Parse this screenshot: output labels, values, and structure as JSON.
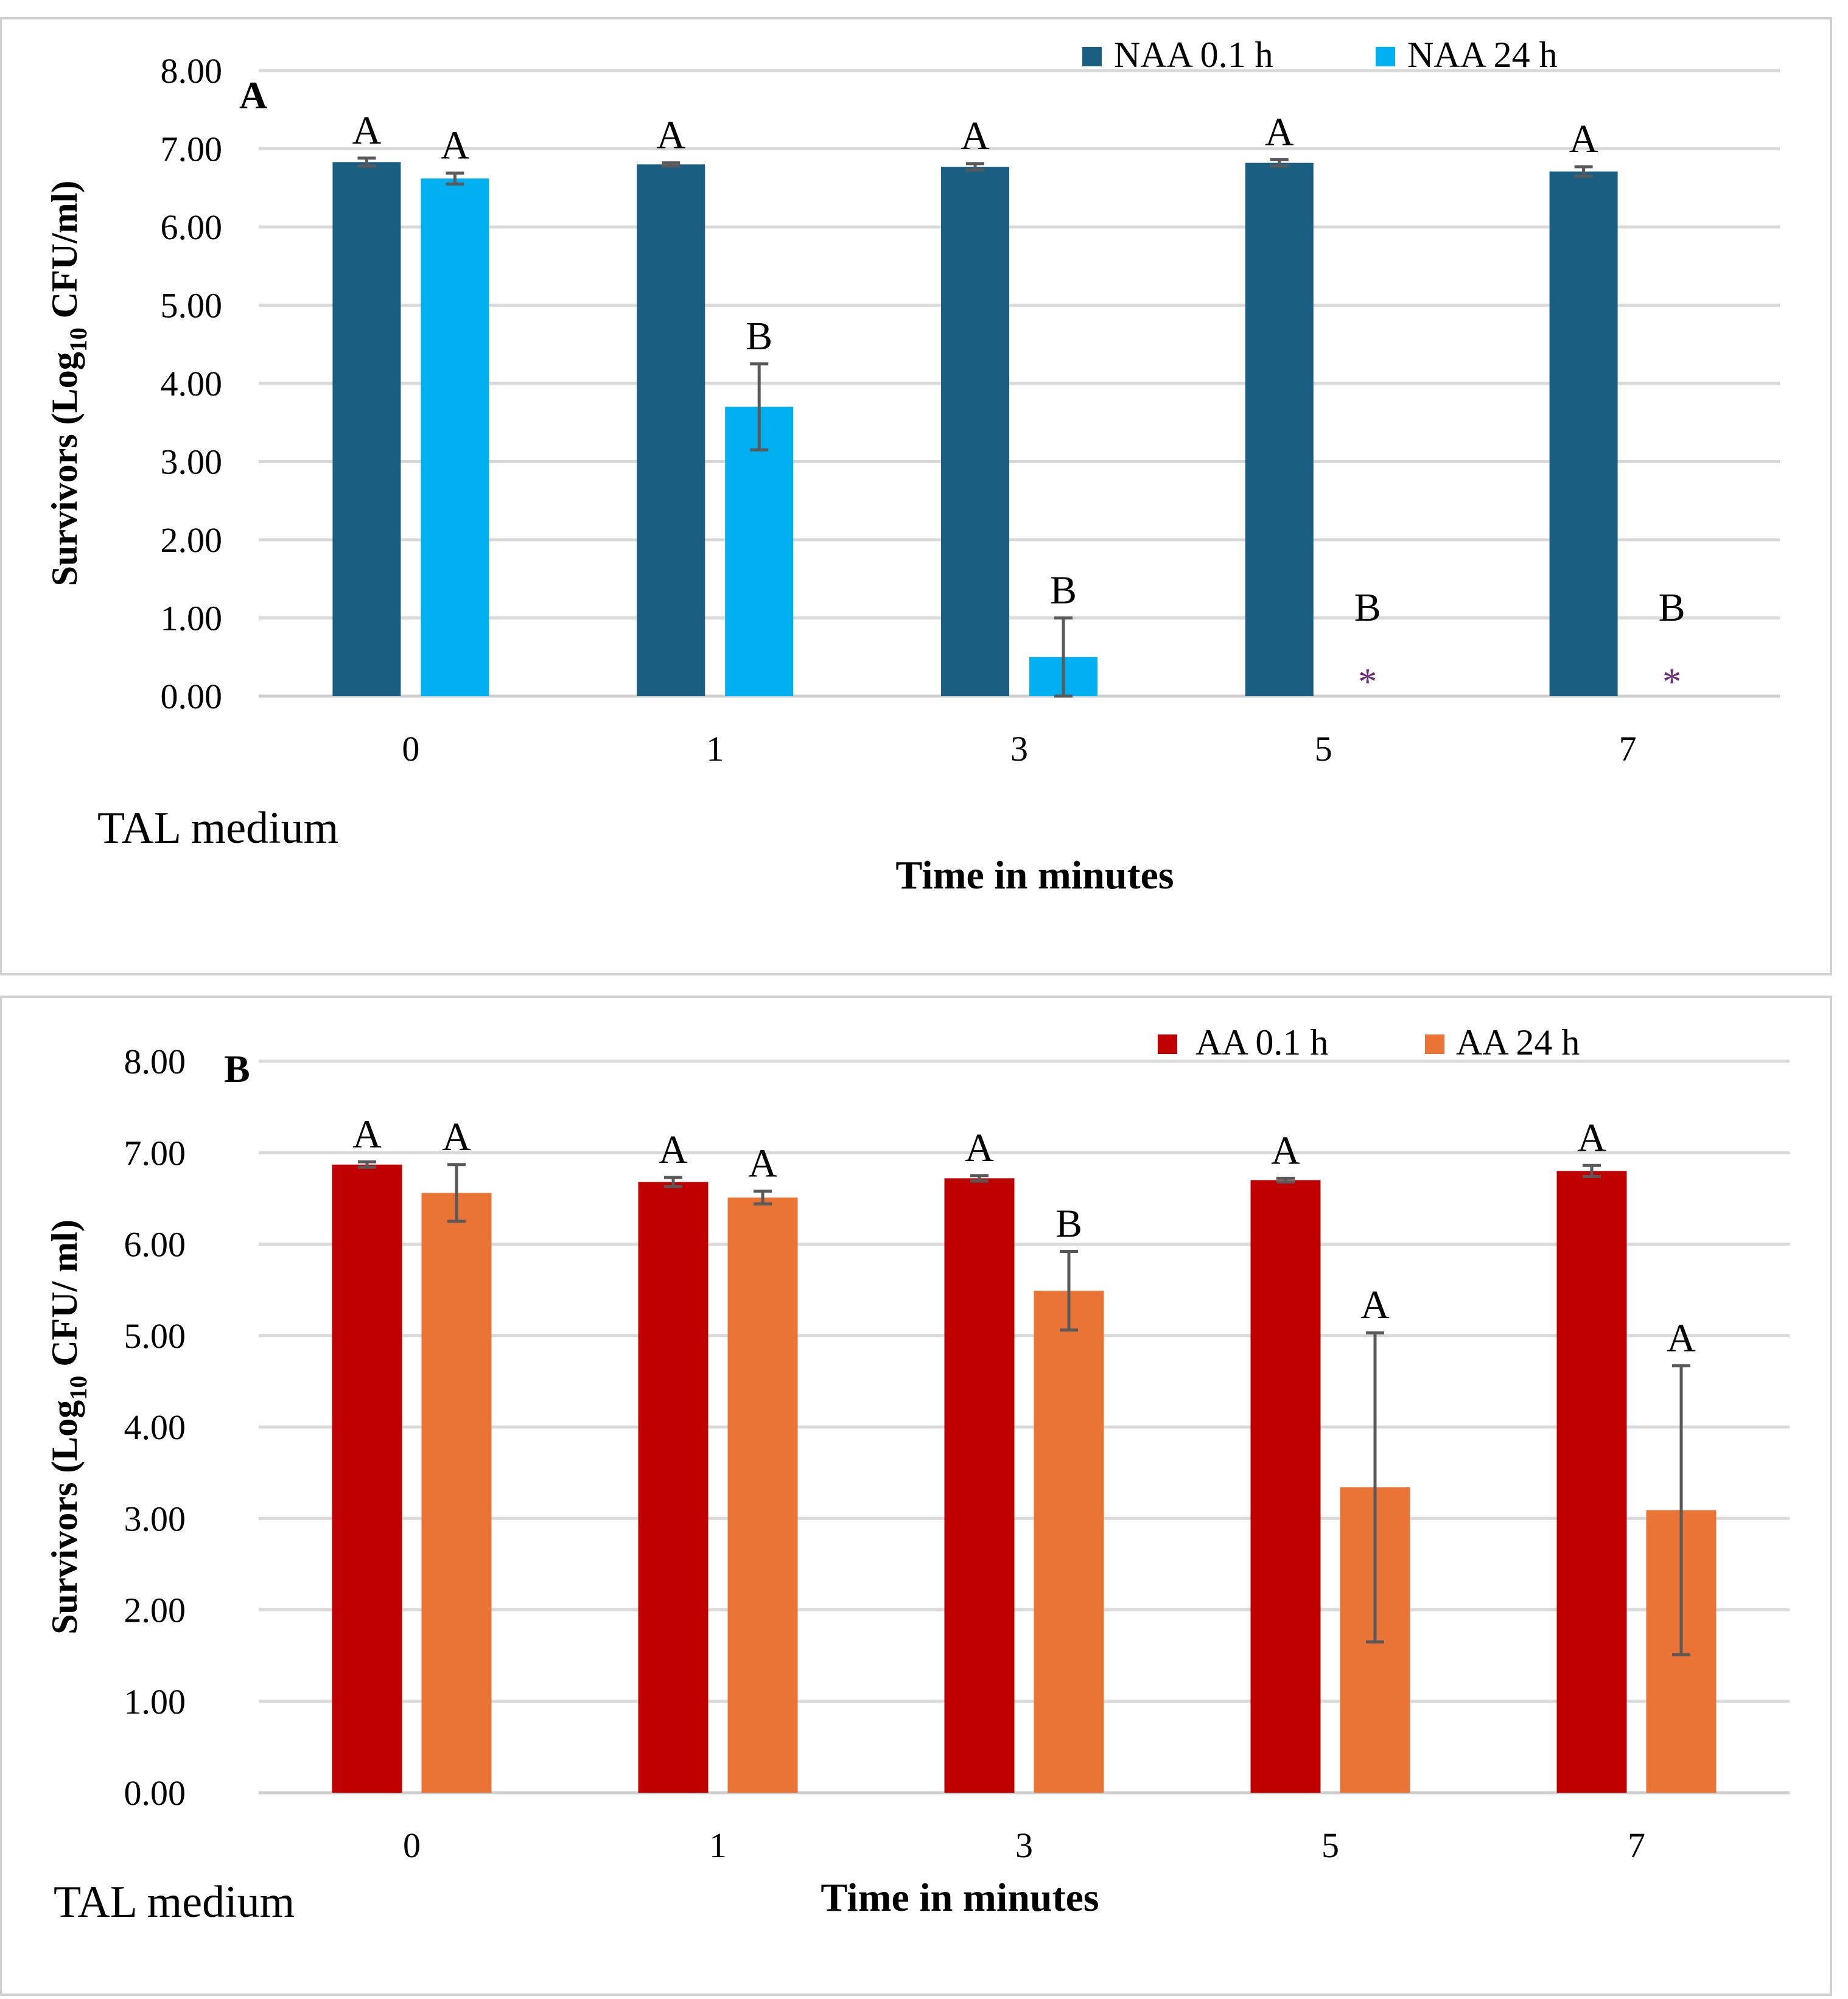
{
  "chart_data": [
    {
      "type": "bar",
      "panel_label": "A",
      "categories": [
        "0",
        "1",
        "3",
        "5",
        "7"
      ],
      "xlabel": "Time in minutes",
      "ylabel_parts": [
        "Survivors (Log",
        "10",
        " CFU/ml)"
      ],
      "note": "TAL medium",
      "ylim": [
        0,
        8
      ],
      "yticks": [
        "0.00",
        "1.00",
        "2.00",
        "3.00",
        "4.00",
        "5.00",
        "6.00",
        "7.00",
        "8.00"
      ],
      "grid": true,
      "legend_position": "top-right",
      "series": [
        {
          "name": "NAA 0.1 h",
          "color": "#1a5e82",
          "values": [
            6.83,
            6.8,
            6.77,
            6.82,
            6.71
          ],
          "errors": [
            0.05,
            0.02,
            0.04,
            0.04,
            0.06
          ],
          "letters": [
            "A",
            "A",
            "A",
            "A",
            "A"
          ],
          "markers": [
            "",
            "",
            "",
            "",
            ""
          ]
        },
        {
          "name": "NAA 24 h",
          "color": "#00b0f0",
          "values": [
            6.62,
            3.7,
            0.5,
            0,
            0
          ],
          "errors": [
            0.07,
            0.55,
            0.5,
            0,
            0
          ],
          "letters": [
            "A",
            "B",
            "B",
            "B",
            "B"
          ],
          "markers": [
            "",
            "",
            "",
            "*",
            "*"
          ]
        }
      ],
      "marker_color": "#6b2c7c"
    },
    {
      "type": "bar",
      "panel_label": "B",
      "categories": [
        "0",
        "1",
        "3",
        "5",
        "7"
      ],
      "xlabel": "Time in minutes",
      "ylabel_parts": [
        "Survivors (Log",
        "10",
        " CFU/ ml)"
      ],
      "note": "TAL medium",
      "ylim": [
        0,
        8
      ],
      "yticks": [
        "0.00",
        "1.00",
        "2.00",
        "3.00",
        "4.00",
        "5.00",
        "6.00",
        "7.00",
        "8.00"
      ],
      "grid": true,
      "legend_position": "top-right",
      "series": [
        {
          "name": "AA 0.1 h",
          "color": "#c00000",
          "values": [
            6.87,
            6.68,
            6.72,
            6.7,
            6.8
          ],
          "errors": [
            0.03,
            0.05,
            0.03,
            0.02,
            0.06
          ],
          "letters": [
            "A",
            "A",
            "A",
            "A",
            "A"
          ],
          "markers": [
            "",
            "",
            "",
            "",
            ""
          ]
        },
        {
          "name": "AA 24 h",
          "color": "#ea7336",
          "values": [
            6.56,
            6.51,
            5.49,
            3.34,
            3.09
          ],
          "errors": [
            0.31,
            0.07,
            0.43,
            1.69,
            1.58
          ],
          "letters": [
            "A",
            "A",
            "B",
            "A",
            "A"
          ],
          "markers": [
            "",
            "",
            "",
            "",
            ""
          ]
        }
      ],
      "marker_color": "#6b2c7c"
    }
  ]
}
